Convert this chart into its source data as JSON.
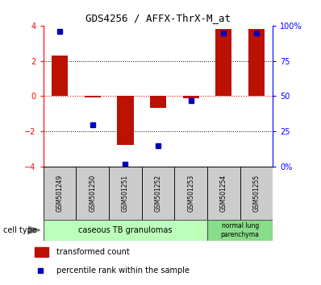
{
  "title": "GDS4256 / AFFX-ThrX-M_at",
  "samples": [
    "GSM501249",
    "GSM501250",
    "GSM501251",
    "GSM501252",
    "GSM501253",
    "GSM501254",
    "GSM501255"
  ],
  "transformed_count": [
    2.3,
    -0.05,
    -2.75,
    -0.65,
    -0.12,
    3.8,
    3.8
  ],
  "percentile_rank": [
    96,
    30,
    2,
    15,
    47,
    95,
    95
  ],
  "ylim_left": [
    -4,
    4
  ],
  "ylim_right": [
    0,
    100
  ],
  "yticks_left": [
    -4,
    -2,
    0,
    2,
    4
  ],
  "bar_color": "#bb1100",
  "dot_color": "#0000bb",
  "cell_type_group1": "caseous TB granulomas",
  "cell_type_group2": "normal lung\nparenchyma",
  "cell_type_label": "cell type",
  "legend_bar": "transformed count",
  "legend_dot": "percentile rank within the sample",
  "group1_color": "#bbffbb",
  "group2_color": "#88dd88",
  "sample_box_color": "#cccccc"
}
